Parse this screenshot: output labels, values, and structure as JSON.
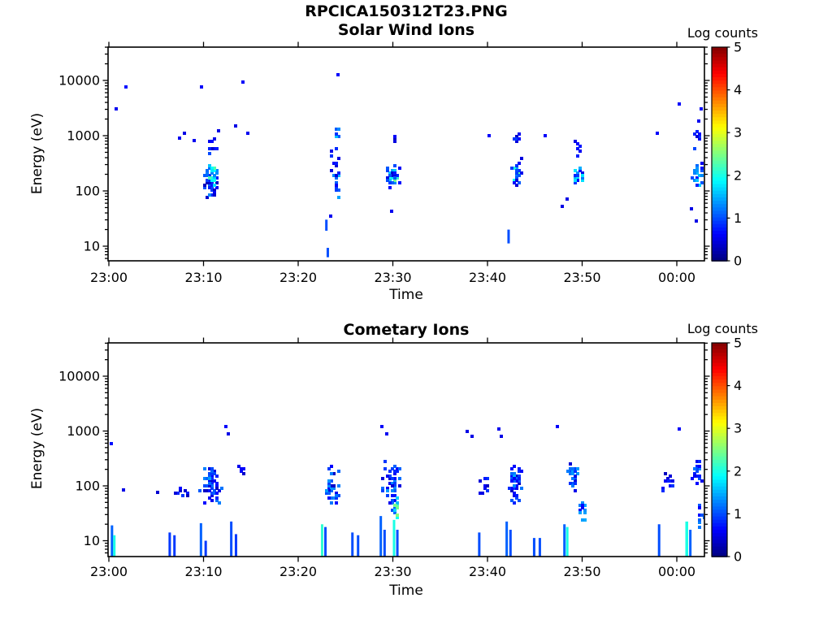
{
  "chart_data": {
    "type": "heatmap",
    "subtype": "ion-energy-spectrogram",
    "title": "RPCICA150312T23.PNG",
    "colormap": "jet",
    "colorbar": {
      "label": "Log counts",
      "min": 0,
      "max": 5,
      "tick_labels": [
        "0",
        "1",
        "2",
        "3",
        "4",
        "5"
      ]
    },
    "time_axis": {
      "label": "Time",
      "tick_labels": [
        "23:00",
        "23:10",
        "23:20",
        "23:30",
        "23:40",
        "23:50",
        "00:00"
      ],
      "tick_minutes": [
        0,
        10,
        20,
        30,
        40,
        50,
        60
      ],
      "range_minutes": [
        -0.1,
        62.9
      ]
    },
    "energy_axis": {
      "label": "Energy (eV)",
      "scale": "log",
      "tick_labels": [
        "10",
        "100",
        "1000",
        "10000"
      ],
      "tick_values": [
        10,
        100,
        1000,
        10000
      ],
      "range_ev": [
        5.4,
        40000
      ]
    },
    "cluster_format": "[t_center_min, t_spread_min, log10E_center, log10E_spread, n_cells, logcount_min, logcount_max]",
    "point_format": "[t_min, log10E, logcount]",
    "stripe_format": "[t_start_min, width_min, log10E_top, logcount] (stripe rises from bottom axis)",
    "bar_format": "[t_start_min, width_min, log10E_bottom, log10E_top, logcount]",
    "panels": [
      {
        "title": "Solar Wind Ions",
        "xlabel": "Time",
        "clusters": [
          [
            10.6,
            1.0,
            2.2,
            0.32,
            45,
            0.3,
            1.3
          ],
          [
            10.8,
            0.5,
            2.3,
            0.2,
            18,
            1.1,
            2.3
          ],
          [
            10.8,
            0.55,
            2.9,
            0.22,
            10,
            0.3,
            1.0
          ],
          [
            23.9,
            0.25,
            3.05,
            0.12,
            8,
            0.8,
            1.9
          ],
          [
            23.9,
            0.45,
            2.2,
            0.3,
            12,
            0.4,
            1.6
          ],
          [
            23.8,
            0.5,
            2.6,
            0.5,
            10,
            0.3,
            0.9
          ],
          [
            30.0,
            0.6,
            2.28,
            0.17,
            24,
            1.2,
            2.6
          ],
          [
            29.9,
            1.0,
            2.25,
            0.3,
            20,
            0.4,
            1.2
          ],
          [
            29.9,
            0.4,
            2.95,
            0.12,
            5,
            0.3,
            0.8
          ],
          [
            42.9,
            0.4,
            2.35,
            0.22,
            20,
            1.1,
            2.4
          ],
          [
            42.9,
            0.65,
            2.35,
            0.33,
            18,
            0.4,
            1.2
          ],
          [
            42.9,
            0.35,
            2.95,
            0.15,
            6,
            0.3,
            0.9
          ],
          [
            49.4,
            0.55,
            2.3,
            0.25,
            25,
            0.5,
            1.8
          ],
          [
            49.3,
            0.4,
            2.8,
            0.2,
            6,
            0.3,
            0.8
          ],
          [
            62.1,
            0.7,
            2.25,
            0.3,
            22,
            0.5,
            1.7
          ],
          [
            62.0,
            0.5,
            2.9,
            0.3,
            8,
            0.3,
            1.0
          ]
        ],
        "points": [
          [
            0.8,
            3.5,
            0.55
          ],
          [
            1.8,
            3.91,
            0.7
          ],
          [
            7.5,
            2.95,
            0.55
          ],
          [
            7.9,
            3.04,
            0.5
          ],
          [
            8.8,
            2.91,
            0.55
          ],
          [
            9.8,
            3.9,
            0.6
          ],
          [
            11.6,
            3.12,
            0.5
          ],
          [
            13.3,
            3.18,
            0.5
          ],
          [
            14.2,
            4.0,
            0.6
          ],
          [
            14.5,
            3.05,
            0.55
          ],
          [
            24.1,
            4.13,
            0.6
          ],
          [
            23.4,
            1.55,
            0.55
          ],
          [
            29.8,
            1.65,
            0.55
          ],
          [
            40.2,
            3.0,
            0.6
          ],
          [
            46.0,
            3.02,
            0.6
          ],
          [
            47.9,
            1.75,
            0.5
          ],
          [
            48.3,
            1.85,
            0.5
          ],
          [
            57.9,
            3.07,
            0.6
          ],
          [
            60.1,
            3.6,
            0.6
          ],
          [
            61.4,
            1.7,
            0.5
          ],
          [
            62.0,
            1.45,
            0.5
          ],
          [
            62.3,
            3.28,
            0.55
          ],
          [
            62.4,
            3.49,
            0.6
          ]
        ],
        "bars": [
          [
            22.85,
            0.18,
            1.28,
            1.48,
            1.0
          ],
          [
            23.0,
            0.14,
            0.8,
            0.97,
            1.0
          ],
          [
            42.1,
            0.15,
            1.05,
            1.3,
            1.0
          ]
        ],
        "stripes": []
      },
      {
        "title": "Cometary Ions",
        "xlabel": "Time",
        "clusters": [
          [
            10.7,
            1.2,
            2.0,
            0.42,
            45,
            0.3,
            1.3
          ],
          [
            10.7,
            0.6,
            2.25,
            0.2,
            10,
            0.7,
            1.4
          ],
          [
            7.3,
            1.0,
            2.0,
            0.2,
            9,
            0.3,
            0.9
          ],
          [
            13.9,
            0.8,
            2.3,
            0.15,
            6,
            0.3,
            0.9
          ],
          [
            23.4,
            0.95,
            2.0,
            0.42,
            36,
            0.3,
            1.4
          ],
          [
            29.7,
            1.05,
            2.15,
            0.33,
            40,
            0.4,
            1.4
          ],
          [
            30.0,
            0.4,
            1.7,
            0.2,
            10,
            0.5,
            1.3
          ],
          [
            30.2,
            0.25,
            1.65,
            0.2,
            10,
            1.5,
            2.6
          ],
          [
            39.3,
            0.8,
            2.0,
            0.2,
            9,
            0.3,
            0.9
          ],
          [
            42.8,
            0.9,
            2.0,
            0.4,
            32,
            0.3,
            1.2
          ],
          [
            42.7,
            0.5,
            2.2,
            0.25,
            14,
            0.6,
            1.5
          ],
          [
            49.0,
            0.7,
            2.2,
            0.3,
            30,
            0.4,
            1.4
          ],
          [
            49.9,
            0.45,
            1.6,
            0.22,
            14,
            0.6,
            1.5
          ],
          [
            59.0,
            0.85,
            2.05,
            0.2,
            11,
            0.3,
            0.9
          ],
          [
            62.0,
            0.7,
            2.25,
            0.3,
            22,
            0.4,
            1.3
          ],
          [
            62.4,
            0.35,
            1.45,
            0.3,
            10,
            0.5,
            1.4
          ]
        ],
        "points": [
          [
            0.3,
            2.78,
            0.7
          ],
          [
            1.5,
            1.95,
            0.5
          ],
          [
            5.0,
            1.9,
            0.4
          ],
          [
            12.2,
            3.08,
            0.6
          ],
          [
            12.6,
            2.95,
            0.5
          ],
          [
            28.8,
            3.1,
            0.6
          ],
          [
            29.3,
            2.95,
            0.55
          ],
          [
            37.8,
            3.02,
            0.5
          ],
          [
            38.2,
            2.9,
            0.5
          ],
          [
            41.1,
            3.05,
            0.55
          ],
          [
            41.5,
            2.9,
            0.5
          ],
          [
            47.4,
            3.1,
            0.6
          ],
          [
            60.3,
            3.05,
            0.6
          ]
        ],
        "bars": [],
        "stripes": [
          [
            0.2,
            0.25,
            1.28,
            1.1
          ],
          [
            0.45,
            0.2,
            1.1,
            2.0
          ],
          [
            6.3,
            0.15,
            1.15,
            0.9
          ],
          [
            6.8,
            0.15,
            1.1,
            0.9
          ],
          [
            9.6,
            0.2,
            1.32,
            1.1
          ],
          [
            10.1,
            0.15,
            1.0,
            0.9
          ],
          [
            12.8,
            0.2,
            1.35,
            1.0
          ],
          [
            13.3,
            0.15,
            1.12,
            0.9
          ],
          [
            22.4,
            0.22,
            1.3,
            2.1
          ],
          [
            22.75,
            0.25,
            1.25,
            1.0
          ],
          [
            25.6,
            0.12,
            1.15,
            1.0
          ],
          [
            26.2,
            0.12,
            1.1,
            1.0
          ],
          [
            28.6,
            0.22,
            1.45,
            1.1
          ],
          [
            29.0,
            0.15,
            1.2,
            1.0
          ],
          [
            30.0,
            0.25,
            1.38,
            2.0
          ],
          [
            30.35,
            0.2,
            1.2,
            1.0
          ],
          [
            39.0,
            0.12,
            1.15,
            1.0
          ],
          [
            41.9,
            0.15,
            1.35,
            1.1
          ],
          [
            42.3,
            0.2,
            1.2,
            1.0
          ],
          [
            44.8,
            0.12,
            1.05,
            1.0
          ],
          [
            45.4,
            0.12,
            1.05,
            1.0
          ],
          [
            48.0,
            0.25,
            1.3,
            1.1
          ],
          [
            48.3,
            0.2,
            1.25,
            2.0
          ],
          [
            58.0,
            0.12,
            1.3,
            1.0
          ],
          [
            60.9,
            0.3,
            1.35,
            2.0
          ],
          [
            61.3,
            0.2,
            1.2,
            1.1
          ]
        ]
      }
    ]
  }
}
